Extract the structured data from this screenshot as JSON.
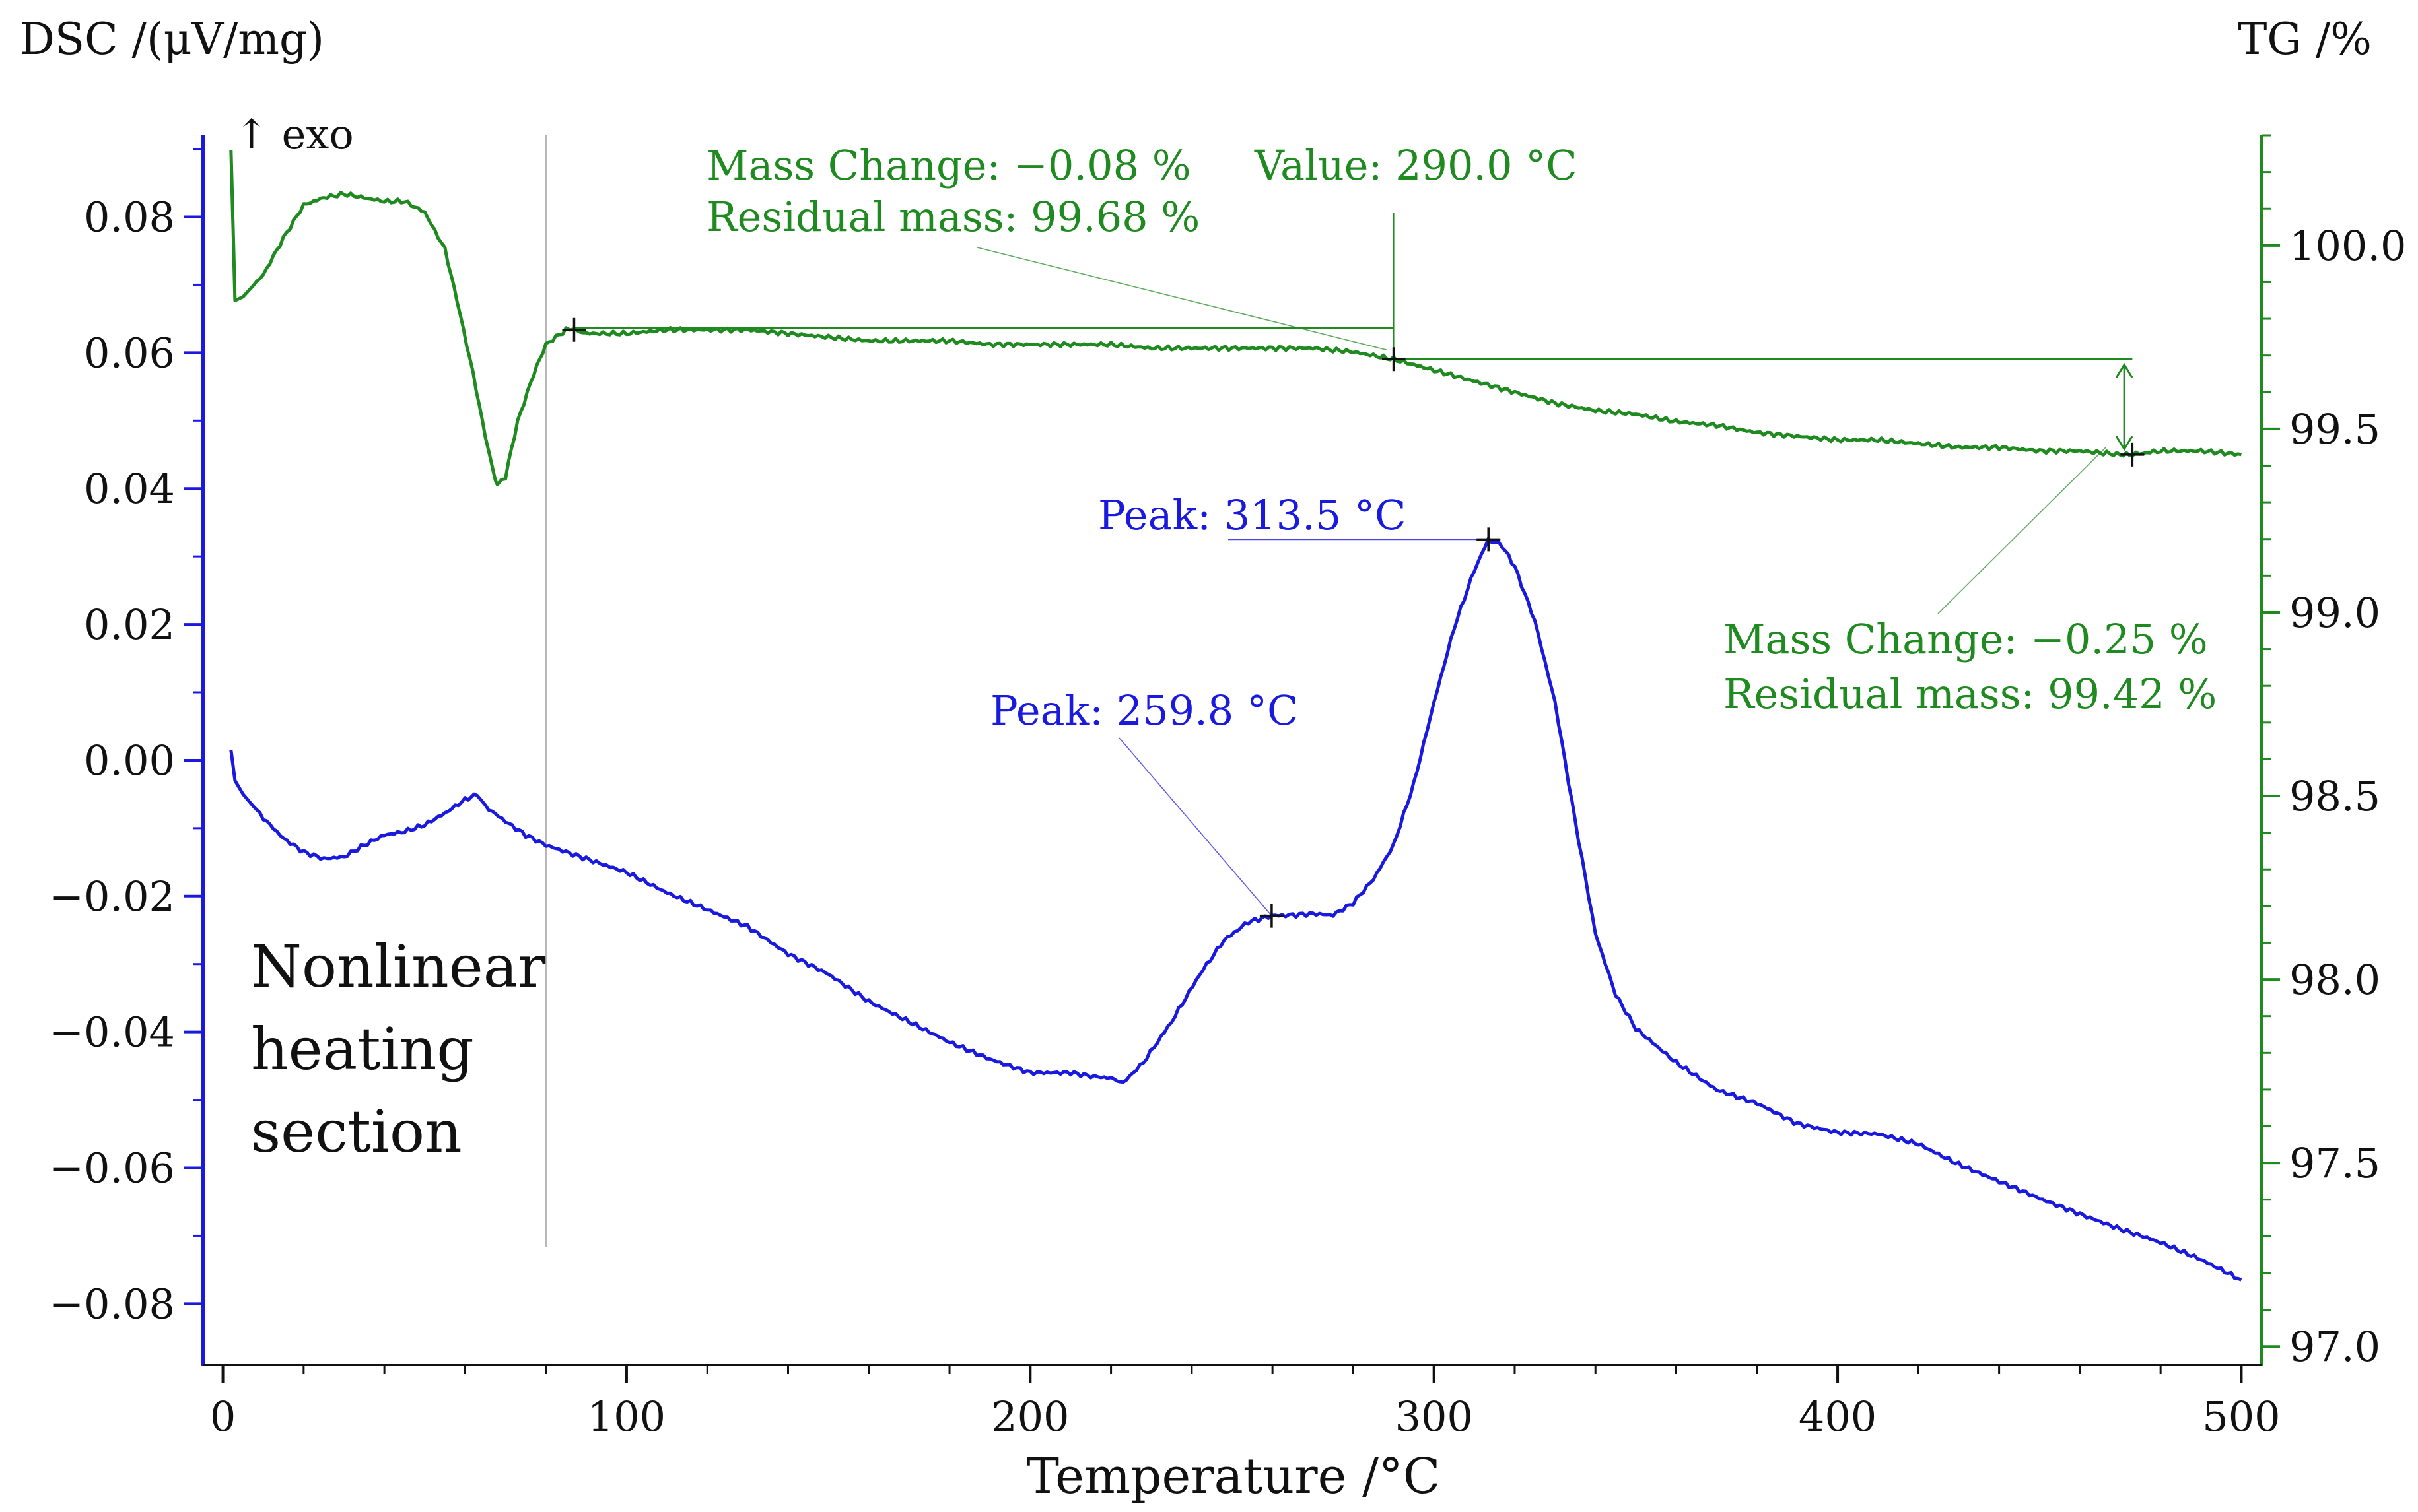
{
  "chart_data": {
    "type": "line",
    "xlabel": "Temperature /°C",
    "ylabel_left": "DSC /(μV/mg)",
    "ylabel_right": "TG /%",
    "exo_label": "↑ exo",
    "section_label": [
      "Nonlinear",
      "heating",
      "section"
    ],
    "section_boundary_x": 80,
    "xlim": [
      -5,
      505
    ],
    "ylim_left": [
      -0.089,
      0.092
    ],
    "ylim_right": [
      96.95,
      100.3
    ],
    "x_ticks": [
      0,
      100,
      200,
      300,
      400,
      500
    ],
    "x_tick_labels": [
      "0",
      "100",
      "200",
      "300",
      "400",
      "500"
    ],
    "y_left_ticks": [
      0.08,
      0.06,
      0.04,
      0.02,
      0.0,
      -0.02,
      -0.04,
      -0.06,
      -0.08
    ],
    "y_left_tick_labels": [
      "0.08",
      "0.06",
      "0.04",
      "0.02",
      "0.00",
      "−0.02",
      "−0.04",
      "−0.06",
      "−0.08"
    ],
    "y_right_ticks": [
      100.0,
      99.5,
      99.0,
      98.5,
      98.0,
      97.5,
      97.0
    ],
    "y_right_tick_labels": [
      "100.0",
      "99.5",
      "99.0",
      "98.5",
      "98.0",
      "97.5",
      "97.0"
    ],
    "colors": {
      "dsc": "#1a1adf",
      "tg": "#1f8a1f",
      "axis_left": "#1a1adf",
      "axis_right": "#1f8a1f",
      "guide": "#b8b8b8",
      "text": "#111111"
    },
    "series": [
      {
        "name": "DSC",
        "axis": "left",
        "x": [
          2,
          3,
          5,
          10,
          15,
          20,
          25,
          30,
          35,
          40,
          45,
          50,
          55,
          60,
          63,
          65,
          70,
          75,
          80,
          90,
          100,
          110,
          120,
          130,
          140,
          150,
          160,
          170,
          180,
          190,
          200,
          210,
          215,
          220,
          223,
          228,
          235,
          242,
          248,
          254,
          259.8,
          265,
          270,
          275,
          280,
          285,
          290,
          295,
          300,
          305,
          310,
          313.5,
          317,
          320,
          325,
          330,
          335,
          340,
          345,
          350,
          360,
          370,
          380,
          390,
          400,
          410,
          420,
          430,
          440,
          450,
          460,
          470,
          480,
          490,
          500
        ],
        "y": [
          0.0015,
          -0.003,
          -0.005,
          -0.0085,
          -0.0115,
          -0.0135,
          -0.0145,
          -0.0142,
          -0.0125,
          -0.011,
          -0.0105,
          -0.0095,
          -0.0078,
          -0.0058,
          -0.005,
          -0.0068,
          -0.009,
          -0.011,
          -0.0125,
          -0.0145,
          -0.0165,
          -0.0195,
          -0.022,
          -0.0245,
          -0.0285,
          -0.0315,
          -0.0355,
          -0.0385,
          -0.0415,
          -0.044,
          -0.046,
          -0.046,
          -0.0465,
          -0.0468,
          -0.0475,
          -0.0445,
          -0.0385,
          -0.0315,
          -0.0265,
          -0.0238,
          -0.0229,
          -0.0228,
          -0.0226,
          -0.0228,
          -0.021,
          -0.0175,
          -0.0125,
          -0.0035,
          0.0085,
          0.0195,
          0.028,
          0.0325,
          0.0315,
          0.0285,
          0.0205,
          0.0085,
          -0.009,
          -0.0255,
          -0.0345,
          -0.0395,
          -0.0445,
          -0.0485,
          -0.0505,
          -0.0535,
          -0.0548,
          -0.055,
          -0.0565,
          -0.0595,
          -0.062,
          -0.0645,
          -0.0668,
          -0.069,
          -0.071,
          -0.0735,
          -0.0765
        ]
      },
      {
        "name": "TG",
        "axis": "right",
        "x": [
          2,
          3,
          5,
          10,
          15,
          20,
          25,
          30,
          35,
          40,
          45,
          50,
          55,
          58,
          62,
          65,
          67,
          68,
          70,
          73,
          77,
          80,
          85,
          87,
          90,
          100,
          110,
          120,
          130,
          140,
          150,
          160,
          170,
          180,
          190,
          200,
          210,
          220,
          230,
          240,
          250,
          260,
          270,
          280,
          290,
          300,
          310,
          320,
          330,
          340,
          350,
          360,
          370,
          380,
          390,
          400,
          410,
          420,
          430,
          440,
          450,
          460,
          470,
          473,
          480,
          490,
          500
        ],
        "y": [
          100.26,
          99.85,
          99.86,
          99.92,
          100.02,
          100.11,
          100.13,
          100.14,
          100.13,
          100.12,
          100.12,
          100.09,
          99.99,
          99.85,
          99.65,
          99.48,
          99.38,
          99.35,
          99.37,
          99.52,
          99.65,
          99.73,
          99.77,
          99.77,
          99.76,
          99.76,
          99.77,
          99.77,
          99.77,
          99.76,
          99.75,
          99.74,
          99.74,
          99.74,
          99.73,
          99.73,
          99.73,
          99.73,
          99.72,
          99.72,
          99.72,
          99.72,
          99.72,
          99.71,
          99.69,
          99.66,
          99.63,
          99.6,
          99.57,
          99.55,
          99.54,
          99.52,
          99.51,
          99.49,
          99.48,
          99.47,
          99.47,
          99.46,
          99.45,
          99.45,
          99.44,
          99.44,
          99.43,
          99.43,
          99.44,
          99.44,
          99.43
        ]
      }
    ],
    "markers": [
      {
        "series": "TG",
        "x": 87,
        "y": 99.77
      },
      {
        "series": "TG",
        "x": 290,
        "y": 99.69
      },
      {
        "series": "TG",
        "x": 473,
        "y": 99.43
      },
      {
        "series": "DSC",
        "x": 259.8,
        "y": -0.0229
      },
      {
        "series": "DSC",
        "x": 313.5,
        "y": 0.0325
      }
    ],
    "annotations": {
      "tg_step1": {
        "lines": [
          "Mass Change:  −0.08 %",
          "Residual mass:  99.68 %"
        ]
      },
      "tg_value": {
        "text": "Value: 290.0 °C"
      },
      "tg_step2": {
        "lines": [
          "Mass Change:  −0.25 %",
          "Residual mass:  99.42 %"
        ]
      },
      "dsc_peak1": {
        "text": "Peak: 259.8 °C"
      },
      "dsc_peak2": {
        "text": "Peak: 313.5 °C"
      }
    }
  }
}
